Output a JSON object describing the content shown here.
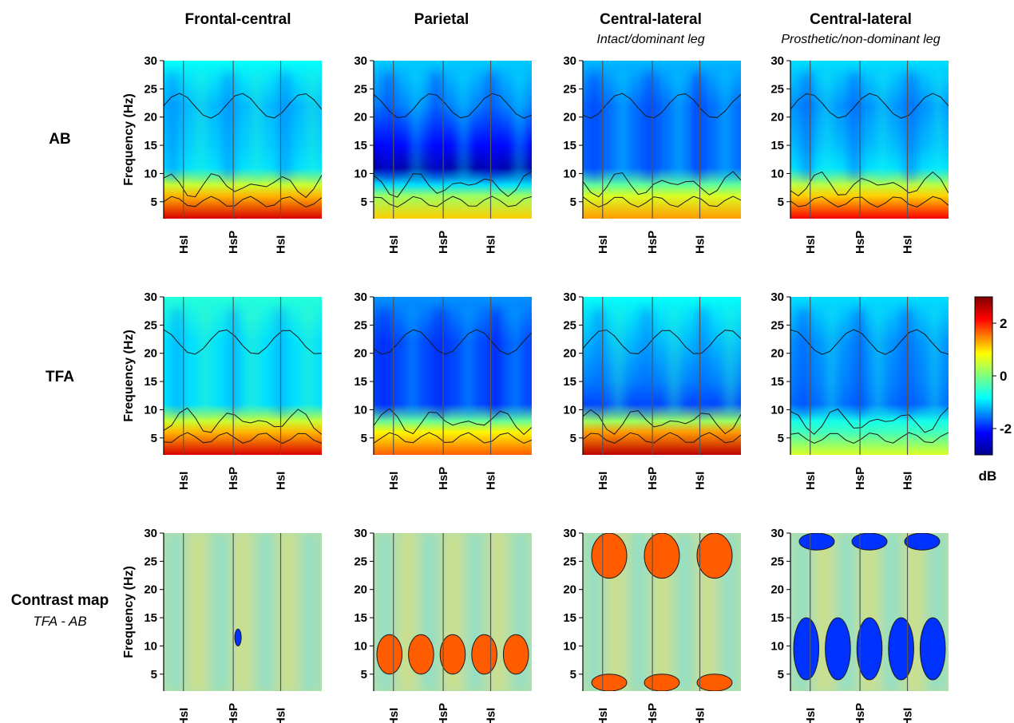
{
  "columns": [
    {
      "title": "Frontal-central",
      "subtitle": ""
    },
    {
      "title": "Parietal",
      "subtitle": ""
    },
    {
      "title": "Central-lateral",
      "subtitle": "Intact/dominant leg"
    },
    {
      "title": "Central-lateral",
      "subtitle": "Prosthetic/non-dominant leg"
    }
  ],
  "rows": [
    {
      "label": "AB",
      "sublabel": ""
    },
    {
      "label": "TFA",
      "sublabel": ""
    },
    {
      "label": "Contrast map",
      "sublabel": "TFA - AB"
    }
  ],
  "colorbar": {
    "unit": "dB",
    "ticks": [
      2,
      0,
      -2
    ],
    "range": [
      -3,
      3
    ],
    "colormap": [
      "#00008f",
      "#0000ff",
      "#00ffff",
      "#7fff7f",
      "#ffff00",
      "#ff7f00",
      "#ff0000",
      "#7f0000"
    ]
  },
  "chart_data": {
    "type": "heatmap",
    "ylabel": "Frequency (Hz)",
    "ylim": [
      2,
      30
    ],
    "yticks": [
      5,
      10,
      15,
      20,
      25,
      30
    ],
    "events": [
      "HsI",
      "HsP",
      "HsI"
    ],
    "note_events": "gait-cycle event markers drawn as vertical lines on every panel",
    "panels": [
      {
        "row": "AB",
        "column": "Frontal-central",
        "band_db": {
          "low_2_6Hz": 2.0,
          "alpha_8_13Hz": -1.0,
          "beta_13_30Hz": -1.2
        }
      },
      {
        "row": "AB",
        "column": "Parietal",
        "band_db": {
          "low_2_6Hz": 0.8,
          "alpha_8_13Hz": -2.8,
          "beta_13_30Hz": -1.5
        }
      },
      {
        "row": "AB",
        "column": "Central-lateral Intact/dominant leg",
        "band_db": {
          "low_2_6Hz": 1.2,
          "alpha_8_13Hz": -1.6,
          "beta_13_30Hz": -1.6
        }
      },
      {
        "row": "AB",
        "column": "Central-lateral Prosthetic/non-dominant leg",
        "band_db": {
          "low_2_6Hz": 1.8,
          "alpha_8_13Hz": -1.0,
          "beta_13_30Hz": -1.4
        }
      },
      {
        "row": "TFA",
        "column": "Frontal-central",
        "band_db": {
          "low_2_6Hz": 2.0,
          "alpha_8_13Hz": -1.0,
          "beta_13_30Hz": -1.0
        }
      },
      {
        "row": "TFA",
        "column": "Parietal",
        "band_db": {
          "low_2_6Hz": 1.5,
          "alpha_8_13Hz": -1.8,
          "beta_13_30Hz": -1.8
        }
      },
      {
        "row": "TFA",
        "column": "Central-lateral Intact/dominant leg",
        "band_db": {
          "low_2_6Hz": 2.2,
          "alpha_8_13Hz": -1.8,
          "beta_13_30Hz": -1.2
        }
      },
      {
        "row": "TFA",
        "column": "Central-lateral Prosthetic/non-dominant leg",
        "band_db": {
          "low_2_6Hz": 0.2,
          "alpha_8_13Hz": -1.6,
          "beta_13_30Hz": -1.4
        }
      },
      {
        "row": "Contrast map",
        "column": "Frontal-central",
        "significant_clusters": [
          {
            "sign": "negative",
            "freq_hz": [
              10,
              13
            ]
          }
        ]
      },
      {
        "row": "Contrast map",
        "column": "Parietal",
        "significant_clusters": [
          {
            "sign": "positive",
            "freq_hz": [
              5,
              12
            ]
          }
        ]
      },
      {
        "row": "Contrast map",
        "column": "Central-lateral Intact/dominant leg",
        "significant_clusters": [
          {
            "sign": "positive",
            "freq_hz": [
              22,
              30
            ]
          },
          {
            "sign": "positive",
            "freq_hz": [
              2,
              5
            ]
          }
        ]
      },
      {
        "row": "Contrast map",
        "column": "Central-lateral Prosthetic/non-dominant leg",
        "significant_clusters": [
          {
            "sign": "negative",
            "freq_hz": [
              4,
              15
            ]
          },
          {
            "sign": "negative",
            "freq_hz": [
              27,
              30
            ]
          }
        ]
      }
    ]
  }
}
